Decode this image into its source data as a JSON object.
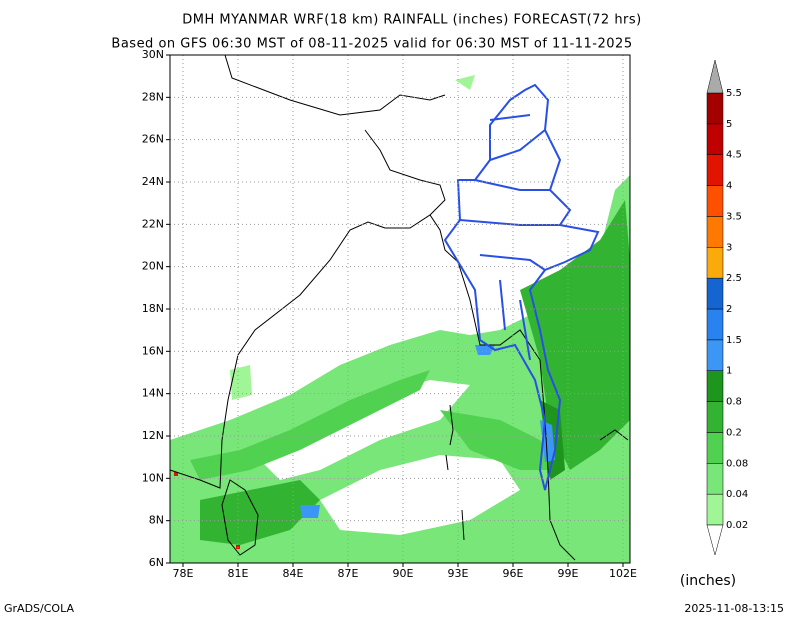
{
  "header": {
    "title": "DMH MYANMAR WRF(18 km) RAINFALL (inches) FORECAST(72 hrs)",
    "subtitle": "Based on GFS 06:30 MST of 08-11-2025 valid for 06:30 MST of 11-11-2025"
  },
  "map": {
    "lon_labels": [
      "78E",
      "81E",
      "84E",
      "87E",
      "90E",
      "93E",
      "96E",
      "99E",
      "102E"
    ],
    "lat_labels": [
      "6N",
      "8N",
      "10N",
      "12N",
      "14N",
      "16N",
      "18N",
      "20N",
      "22N",
      "24N",
      "26N",
      "28N",
      "30N"
    ]
  },
  "colorbar": {
    "levels": [
      "0.02",
      "0.04",
      "0.08",
      "0.2",
      "0.8",
      "1",
      "1.5",
      "2",
      "2.5",
      "3",
      "3.5",
      "4",
      "4.5",
      "5",
      "5.5"
    ],
    "colors": [
      "#a0f596",
      "#78e678",
      "#50d250",
      "#32b432",
      "#1e961e",
      "#3c96f5",
      "#2882f0",
      "#1464d2",
      "#faaa0a",
      "#ff7800",
      "#ff5000",
      "#e11400",
      "#c00000",
      "#a50000"
    ],
    "unit": "(inches)"
  },
  "footer": {
    "left": "GrADS/COLA",
    "right": "2025-11-08-13:15"
  }
}
